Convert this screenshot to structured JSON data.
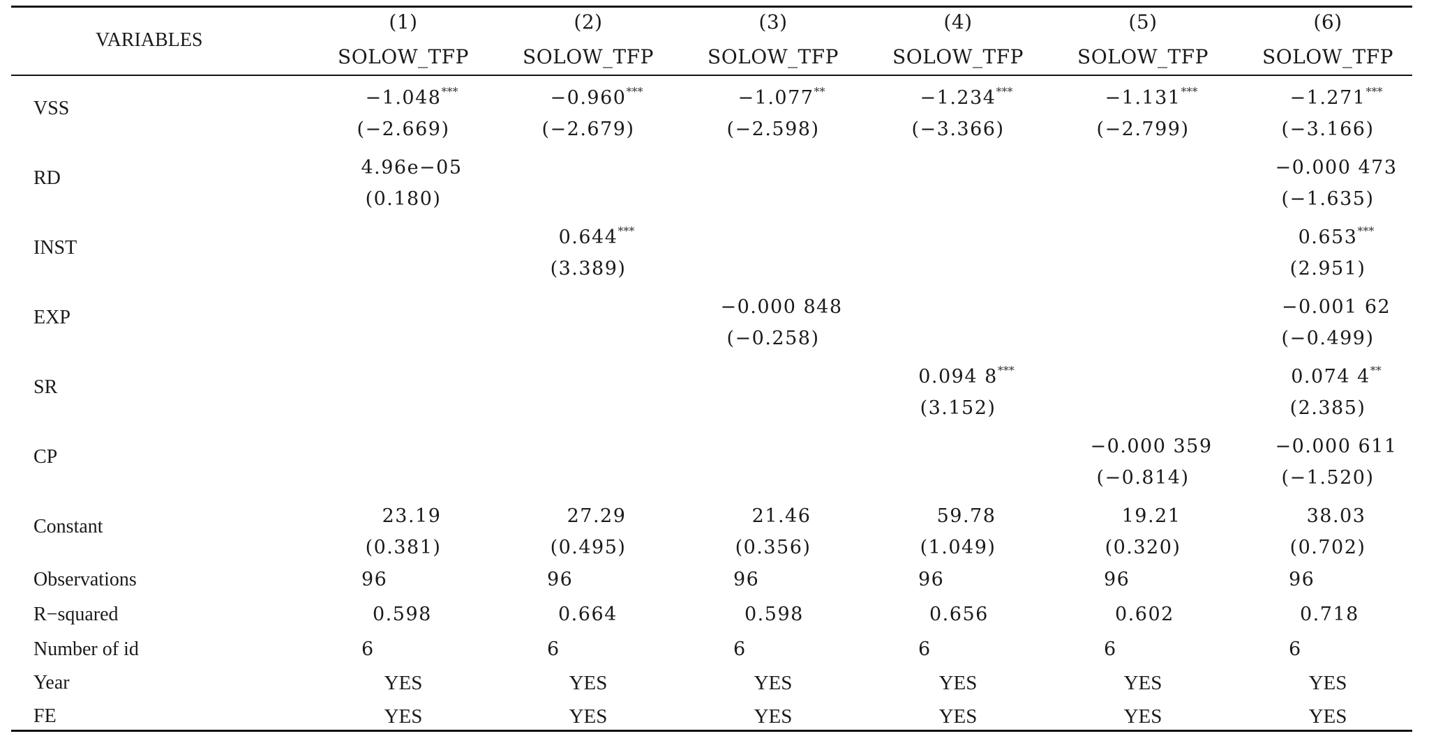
{
  "table": {
    "corner_label": "VARIABLES",
    "columns": [
      {
        "number": "(1)",
        "dep_var": "SOLOW_TFP"
      },
      {
        "number": "(2)",
        "dep_var": "SOLOW_TFP"
      },
      {
        "number": "(3)",
        "dep_var": "SOLOW_TFP"
      },
      {
        "number": "(4)",
        "dep_var": "SOLOW_TFP"
      },
      {
        "number": "(5)",
        "dep_var": "SOLOW_TFP"
      },
      {
        "number": "(6)",
        "dep_var": "SOLOW_TFP"
      }
    ],
    "coef_rows": [
      {
        "label": "VSS",
        "coefs": [
          {
            "v": "−1.048",
            "s": "***"
          },
          {
            "v": "−0.960",
            "s": "***"
          },
          {
            "v": "−1.077",
            "s": "**"
          },
          {
            "v": "−1.234",
            "s": "***"
          },
          {
            "v": "−1.131",
            "s": "***"
          },
          {
            "v": "−1.271",
            "s": "***"
          }
        ],
        "tstats": [
          "(−2.669)",
          "(−2.679)",
          "(−2.598)",
          "(−3.366)",
          "(−2.799)",
          "(−3.166)"
        ]
      },
      {
        "label": "RD",
        "coefs": [
          {
            "v": "4.96e−05",
            "s": ""
          },
          null,
          null,
          null,
          null,
          {
            "v": "−0.000 473",
            "s": ""
          }
        ],
        "tstats": [
          "(0.180)",
          null,
          null,
          null,
          null,
          "(−1.635)"
        ]
      },
      {
        "label": "INST",
        "coefs": [
          null,
          {
            "v": "0.644",
            "s": "***"
          },
          null,
          null,
          null,
          {
            "v": "0.653",
            "s": "***"
          }
        ],
        "tstats": [
          null,
          "(3.389)",
          null,
          null,
          null,
          "(2.951)"
        ]
      },
      {
        "label": "EXP",
        "coefs": [
          null,
          null,
          {
            "v": "−0.000 848",
            "s": ""
          },
          null,
          null,
          {
            "v": "−0.001 62",
            "s": ""
          }
        ],
        "tstats": [
          null,
          null,
          "(−0.258)",
          null,
          null,
          "(−0.499)"
        ]
      },
      {
        "label": "SR",
        "coefs": [
          null,
          null,
          null,
          {
            "v": "0.094 8",
            "s": "***"
          },
          null,
          {
            "v": "0.074 4",
            "s": "**"
          }
        ],
        "tstats": [
          null,
          null,
          null,
          "(3.152)",
          null,
          "(2.385)"
        ]
      },
      {
        "label": "CP",
        "coefs": [
          null,
          null,
          null,
          null,
          {
            "v": "−0.000 359",
            "s": ""
          },
          {
            "v": "−0.000 611",
            "s": ""
          }
        ],
        "tstats": [
          null,
          null,
          null,
          null,
          "(−0.814)",
          "(−1.520)"
        ]
      },
      {
        "label": "Constant",
        "coefs": [
          {
            "v": "23.19",
            "s": ""
          },
          {
            "v": "27.29",
            "s": ""
          },
          {
            "v": "21.46",
            "s": ""
          },
          {
            "v": "59.78",
            "s": ""
          },
          {
            "v": "19.21",
            "s": ""
          },
          {
            "v": "38.03",
            "s": ""
          }
        ],
        "tstats": [
          "(0.381)",
          "(0.495)",
          "(0.356)",
          "(1.049)",
          "(0.320)",
          "(0.702)"
        ]
      }
    ],
    "stat_rows": [
      {
        "label": "Observations",
        "values": [
          "96",
          "96",
          "96",
          "96",
          "96",
          "96"
        ]
      },
      {
        "label": "R−squared",
        "values": [
          "0.598",
          "0.664",
          "0.598",
          "0.656",
          "0.602",
          "0.718"
        ]
      },
      {
        "label": "Number of id",
        "values": [
          "6",
          "6",
          "6",
          "6",
          "6",
          "6"
        ]
      }
    ],
    "control_rows": [
      {
        "label": "Year",
        "values": [
          "YES",
          "YES",
          "YES",
          "YES",
          "YES",
          "YES"
        ]
      },
      {
        "label": "FE",
        "values": [
          "YES",
          "YES",
          "YES",
          "YES",
          "YES",
          "YES"
        ]
      }
    ]
  }
}
